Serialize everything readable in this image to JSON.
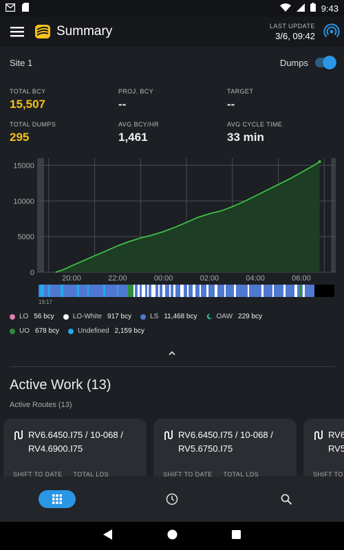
{
  "status_bar": {
    "time": "9:43",
    "left_icons": [
      "gmail-icon",
      "sd-card-icon"
    ],
    "right_icons": [
      "wifi-icon",
      "signal-icon",
      "battery-icon"
    ]
  },
  "app_bar": {
    "title": "Summary",
    "last_update_label": "LAST UPDATE",
    "last_update_value": "3/6, 09:42"
  },
  "site": {
    "name": "Site 1",
    "toggle_label": "Dumps",
    "toggle_on": true
  },
  "stats": [
    {
      "label": "TOTAL BCY",
      "value": "15,507",
      "highlight": true
    },
    {
      "label": "PROJ. BCY",
      "value": "--",
      "highlight": false
    },
    {
      "label": "TARGET",
      "value": "--",
      "highlight": false
    },
    {
      "label": "TOTAL DUMPS",
      "value": "295",
      "highlight": true
    },
    {
      "label": "AVG BCY/HR",
      "value": "1,461",
      "highlight": false
    },
    {
      "label": "AVG CYCLE TIME",
      "value": "33 min",
      "highlight": false
    }
  ],
  "chart_data": {
    "type": "area",
    "y_ticks": [
      "15000",
      "10000",
      "5000",
      "0"
    ],
    "x_ticks": [
      "20:00",
      "22:00",
      "00:00",
      "02:00",
      "04:00",
      "06:00"
    ],
    "timeline_start_label": "19:17",
    "ylim": [
      0,
      16000
    ],
    "series": [
      {
        "color": "#3fbf48",
        "x": [
          19.3,
          19.6,
          20.0,
          20.5,
          21.0,
          21.5,
          22.0,
          22.5,
          23.0,
          23.5,
          24.0,
          24.5,
          25.0,
          25.5,
          26.0,
          26.5,
          27.0,
          27.5,
          28.0,
          28.5,
          29.0,
          29.5,
          30.0,
          30.5,
          30.8
        ],
        "values": [
          0,
          300,
          900,
          1600,
          2300,
          3000,
          3700,
          4300,
          4800,
          5200,
          5700,
          6300,
          7000,
          7700,
          8200,
          8600,
          9200,
          9900,
          10700,
          11500,
          12300,
          13100,
          14000,
          14900,
          15507
        ]
      }
    ],
    "shaded_start": 18.8,
    "shaded_end": 31.3,
    "x_domain": [
      18.5,
      31.5
    ]
  },
  "legend": [
    {
      "name": "LO",
      "value": "56 bcy",
      "color": "#e07fb3"
    },
    {
      "name": "LO-White",
      "value": "917 bcy",
      "color": "#ffffff"
    },
    {
      "name": "LS",
      "value": "11,468 bcy",
      "color": "#4f79d1"
    },
    {
      "name": "OAW",
      "value": "229 bcy",
      "color": "#1fc4a0"
    },
    {
      "name": "UO",
      "value": "678 bcy",
      "color": "#2f8c3c"
    },
    {
      "name": "Undefined",
      "value": "2,159 bcy",
      "color": "#25a8ef"
    }
  ],
  "active_work": {
    "title": "Active Work (13)",
    "subtitle": "Active Routes (13)",
    "cards": [
      {
        "line1": "RV6.6450.I75 / 10-068 /",
        "line2": "RV4.6900.I75",
        "meta1": "SHIFT TO DATE",
        "meta2": "TOTAL LDS"
      },
      {
        "line1": "RV6.6450.I75 / 10-068 /",
        "line2": "RV5.6750.I75",
        "meta1": "SHIFT TO DATE",
        "meta2": "TOTAL LDS"
      },
      {
        "line1": "RV6",
        "line2": "RV5",
        "meta1": "SHIFT TO",
        "meta2": ""
      }
    ]
  },
  "bottom_nav": [
    "dashboard-icon",
    "history-icon",
    "search-icon"
  ],
  "colors": {
    "accent": "#2b96e6",
    "gold": "#f5c21b",
    "chart_green": "#3fbf48",
    "background": "#1c1f23"
  }
}
